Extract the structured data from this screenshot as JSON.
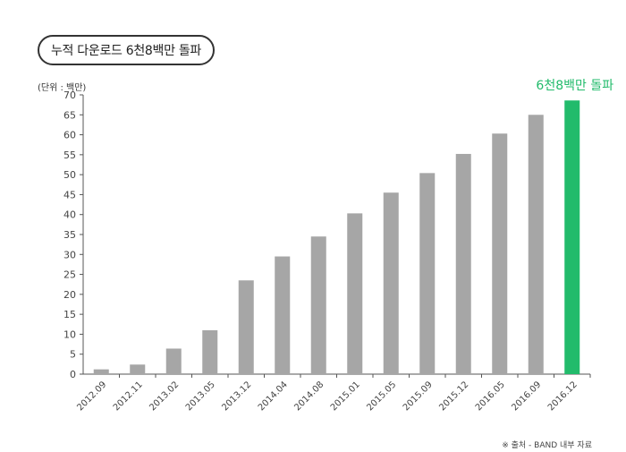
{
  "header": {
    "title": "누적 다운로드 6천8백만 돌파",
    "unit_label": "(단위 : 백만)"
  },
  "footer": {
    "source": "※ 출처 - BAND 내부 자료"
  },
  "chart_data": {
    "type": "bar",
    "title": "누적 다운로드 6천8백만 돌파",
    "ylabel": "(단위 : 백만)",
    "ylim": [
      0,
      70
    ],
    "yticks": [
      0,
      5,
      10,
      15,
      20,
      25,
      30,
      35,
      40,
      45,
      50,
      55,
      60,
      65,
      70
    ],
    "grid": false,
    "categories": [
      "2012.09",
      "2012.11",
      "2013.02",
      "2013.05",
      "2013.12",
      "2014.04",
      "2014.08",
      "2015.01",
      "2015.05",
      "2015.09",
      "2015.12",
      "2016.05",
      "2016.09",
      "2016.12"
    ],
    "values": [
      1.2,
      2.4,
      6.4,
      11,
      23.5,
      29.5,
      34.5,
      40.3,
      45.5,
      50.4,
      55.2,
      60.3,
      65,
      68.6
    ],
    "bar_color": "#a6a6a6",
    "highlight_index": 13,
    "highlight_color": "#22bb6b",
    "annotation": "6천8백만 돌파"
  }
}
